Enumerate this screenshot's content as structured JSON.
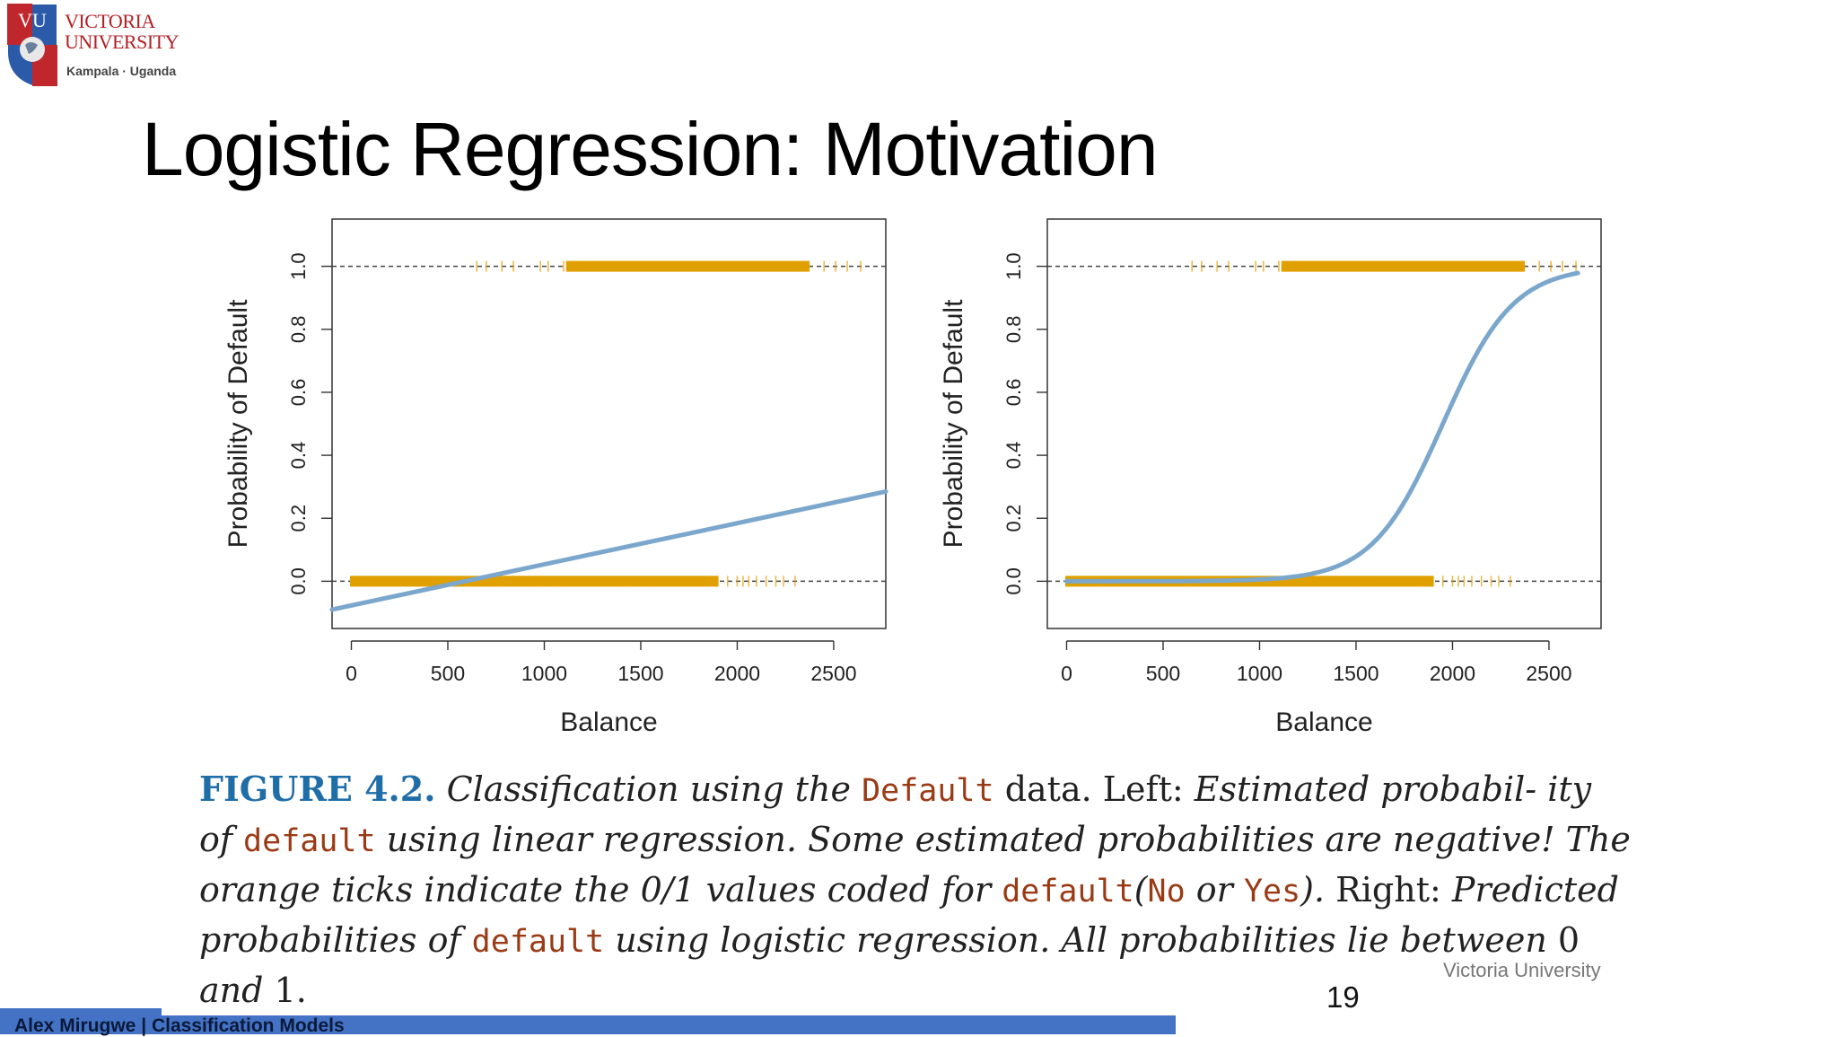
{
  "header": {
    "logo_initials": "VU",
    "institution_line1": "VICTORIA",
    "institution_line2": "UNIVERSITY",
    "location": "Kampala · Uganda"
  },
  "slide": {
    "title": "Logistic Regression: Motivation",
    "page_number": "19",
    "brand_note": "Victoria University"
  },
  "footer": {
    "author": "Alex Mirugwe",
    "separator": "|",
    "course": "Classification Models"
  },
  "caption": {
    "figure_label": "FIGURE 4.2.",
    "parts": [
      "Classification using the",
      "Default",
      "data.",
      "Left:",
      "Estimated probabil-",
      "ity of",
      "default",
      "using linear regression. Some estimated probabilities are negative!",
      "The orange ticks indicate the 0/1 values coded for",
      "default",
      "(",
      "No",
      "or",
      "Yes",
      ").",
      "Right:",
      "Predicted probabilities of",
      "default",
      "using logistic regression. All probabilities lie",
      "between",
      "0",
      "and",
      "1."
    ]
  },
  "colors": {
    "fit_line": "#7ba7cd",
    "ticks_orange": "#e0a000",
    "dashed_ref": "#444444",
    "caption_blue": "#1f6ea8",
    "code_brown": "#9a3b16",
    "footer_blue": "#4472c4"
  },
  "chart_data": [
    {
      "type": "line",
      "title": "",
      "xlabel": "Balance",
      "ylabel": "Probability of Default",
      "xlim": [
        -100,
        2770
      ],
      "ylim": [
        -0.15,
        1.15
      ],
      "xticks": [
        0,
        500,
        1000,
        1500,
        2000,
        2500
      ],
      "xtick_labels": [
        "0",
        "500",
        "1000",
        "1500",
        "2000",
        "2500"
      ],
      "yticks": [
        0.0,
        0.2,
        0.4,
        0.6,
        0.8,
        1.0
      ],
      "ytick_labels": [
        "0.0",
        "0.2",
        "0.4",
        "0.6",
        "0.8",
        "1.0"
      ],
      "reference_lines_y": [
        0,
        1
      ],
      "fit": {
        "name": "Linear regression fit",
        "model": "linear",
        "x": [
          -100,
          2770
        ],
        "y": [
          -0.09,
          0.285
        ]
      },
      "ticks_no": {
        "y": 0,
        "x_dense_range": [
          0,
          1900
        ],
        "x_sparse": [
          1950,
          2000,
          2030,
          2060,
          2100,
          2150,
          2200,
          2240,
          2300
        ]
      },
      "ticks_yes": {
        "y": 1,
        "x_sparse": [
          650,
          700,
          780,
          840,
          980,
          1020,
          1100,
          2450,
          2510,
          2570,
          2640
        ],
        "x_dense_range": [
          1120,
          2370
        ]
      }
    },
    {
      "type": "line",
      "title": "",
      "xlabel": "Balance",
      "ylabel": "Probability of Default",
      "xlim": [
        -100,
        2770
      ],
      "ylim": [
        -0.15,
        1.15
      ],
      "xticks": [
        0,
        500,
        1000,
        1500,
        2000,
        2500
      ],
      "xtick_labels": [
        "0",
        "500",
        "1000",
        "1500",
        "2000",
        "2500"
      ],
      "yticks": [
        0.0,
        0.2,
        0.4,
        0.6,
        0.8,
        1.0
      ],
      "ytick_labels": [
        "0.0",
        "0.2",
        "0.4",
        "0.6",
        "0.8",
        "1.0"
      ],
      "reference_lines_y": [
        0,
        1
      ],
      "fit": {
        "name": "Logistic regression fit",
        "model": "logistic",
        "x_range": [
          0,
          2650
        ],
        "midpoint": 1950,
        "scale": 183
      },
      "ticks_no": {
        "y": 0,
        "x_dense_range": [
          0,
          1900
        ],
        "x_sparse": [
          1950,
          2000,
          2030,
          2060,
          2100,
          2150,
          2200,
          2240,
          2300
        ]
      },
      "ticks_yes": {
        "y": 1,
        "x_sparse": [
          650,
          700,
          780,
          840,
          980,
          1020,
          1100,
          2450,
          2510,
          2570,
          2640
        ],
        "x_dense_range": [
          1120,
          2370
        ]
      }
    }
  ]
}
